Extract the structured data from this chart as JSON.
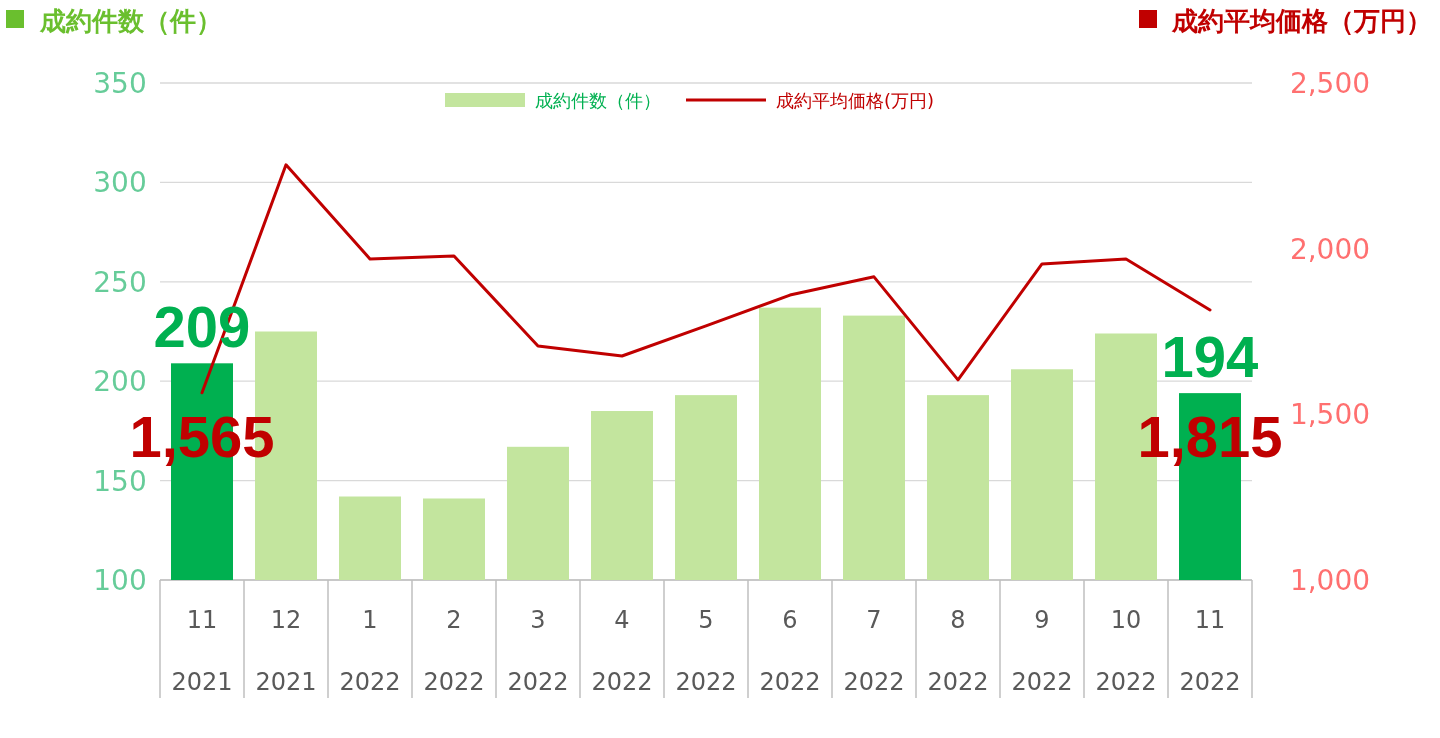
{
  "chart_data": {
    "type": "bar",
    "ylabel": "成約件数（件）",
    "y2label": "成約平均価格（万円）",
    "categories": [
      "11\n2021",
      "12\n2021",
      "1\n2022",
      "2\n2022",
      "3\n2022",
      "4\n2022",
      "5\n2022",
      "6\n2022",
      "7\n2022",
      "8\n2022",
      "9\n2022",
      "10\n2022",
      "11\n2022"
    ],
    "ylim": [
      100,
      350
    ],
    "yticks": [
      100,
      150,
      200,
      250,
      300,
      350
    ],
    "y2lim": [
      1000,
      2500
    ],
    "y2ticks": [
      {
        "value": 1000,
        "label": "1,000"
      },
      {
        "value": 1500,
        "label": "1,500"
      },
      {
        "value": 2000,
        "label": "2,000"
      },
      {
        "value": 2500,
        "label": "2,500"
      }
    ],
    "grid": "y",
    "legend": "top",
    "series": [
      {
        "name": "成約件数（件）",
        "type": "bar",
        "color": "#c3e59e",
        "colors": [
          "#00b050",
          "#c3e59e",
          "#c3e59e",
          "#c3e59e",
          "#c3e59e",
          "#c3e59e",
          "#c3e59e",
          "#c3e59e",
          "#c3e59e",
          "#c3e59e",
          "#c3e59e",
          "#c3e59e",
          "#00b050"
        ],
        "values": [
          209,
          225,
          142,
          141,
          167,
          185,
          193,
          237,
          233,
          193,
          206,
          224,
          194
        ],
        "value_labels": [
          "209",
          null,
          null,
          null,
          null,
          null,
          null,
          null,
          null,
          null,
          null,
          null,
          "194"
        ]
      },
      {
        "name": "成約平均価格(万円)",
        "type": "line",
        "axis": "y2",
        "color": "#c00000",
        "values": [
          1565,
          2253,
          1969,
          1978,
          1706,
          1676,
          1767,
          1860,
          1915,
          1604,
          1954,
          1969,
          1815
        ],
        "value_labels": [
          "1,565",
          null,
          null,
          null,
          null,
          null,
          null,
          null,
          null,
          null,
          null,
          null,
          "1,815"
        ]
      }
    ]
  }
}
